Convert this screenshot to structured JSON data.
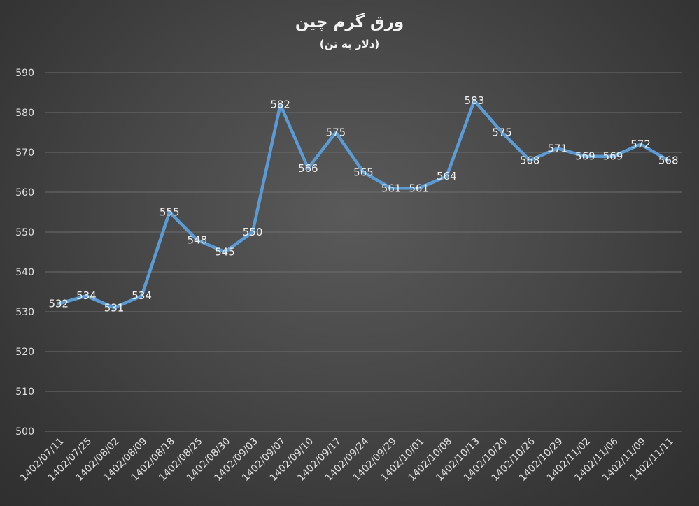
{
  "chart_data": {
    "type": "line",
    "title": "ورق گرم چین",
    "subtitle": "(دلار به تن)",
    "xlabel": "",
    "ylabel": "",
    "ylim": [
      500,
      590
    ],
    "yticks": [
      500,
      510,
      520,
      530,
      540,
      550,
      560,
      570,
      580,
      590
    ],
    "grid": true,
    "legend": "none",
    "line_color": "#5b9bd5",
    "categories": [
      "1402/07/11",
      "1402/07/25",
      "1402/08/02",
      "1402/08/09",
      "1402/08/18",
      "1402/08/25",
      "1402/08/30",
      "1402/09/03",
      "1402/09/07",
      "1402/09/10",
      "1402/09/17",
      "1402/09/24",
      "1402/09/29",
      "1402/10/01",
      "1402/10/08",
      "1402/10/13",
      "1402/10/20",
      "1402/10/26",
      "1402/10/29",
      "1402/11/02",
      "1402/11/06",
      "1402/11/09",
      "1402/11/11"
    ],
    "values": [
      532,
      534,
      531,
      534,
      555,
      548,
      545,
      550,
      582,
      566,
      575,
      565,
      561,
      561,
      564,
      583,
      575,
      568,
      571,
      569,
      569,
      572,
      568
    ]
  }
}
